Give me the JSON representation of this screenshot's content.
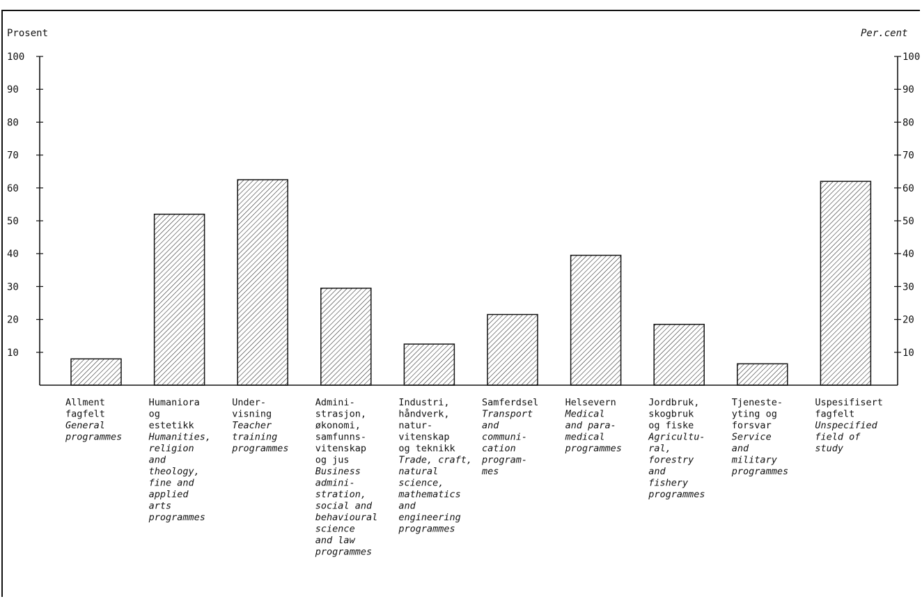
{
  "chart_data": {
    "type": "bar",
    "ylabel_left": "Prosent",
    "ylabel_right": "Per.cent",
    "ylim": [
      0,
      100
    ],
    "yticks": [
      10,
      20,
      30,
      40,
      50,
      60,
      70,
      80,
      90,
      100
    ],
    "grid": false,
    "pattern": "diagonal-hatch",
    "categories": [
      {
        "no": [
          "Allment",
          "fagfelt"
        ],
        "en": [
          "General",
          "programmes"
        ],
        "value": 8
      },
      {
        "no": [
          "Humaniora",
          "og",
          "estetikk"
        ],
        "en": [
          "Humanities,",
          "religion",
          "and",
          "theology,",
          "fine and",
          "applied",
          "arts",
          "programmes"
        ],
        "value": 52
      },
      {
        "no": [
          "Under-",
          "visning"
        ],
        "en": [
          "Teacher",
          "training",
          "programmes"
        ],
        "value": 62.5
      },
      {
        "no": [
          "Admini-",
          "strasjon,",
          "økonomi,",
          "samfunns-",
          "vitenskap",
          "og jus"
        ],
        "en": [
          "Business",
          "admini-",
          "stration,",
          "social and",
          "behavioural",
          "science",
          "and law",
          "programmes"
        ],
        "value": 29.5
      },
      {
        "no": [
          "Industri,",
          "håndverk,",
          "natur-",
          "vitenskap",
          "og teknikk"
        ],
        "en": [
          "Trade, craft,",
          "natural",
          "science,",
          "mathematics",
          "and",
          "engineering",
          "programmes"
        ],
        "value": 12.5
      },
      {
        "no": [
          "Samferdsel"
        ],
        "en": [
          "Transport",
          "and",
          "communi-",
          "cation",
          "program-",
          "mes"
        ],
        "value": 21.5
      },
      {
        "no": [
          "Helsevern"
        ],
        "en": [
          "Medical",
          "and para-",
          "medical",
          "programmes"
        ],
        "value": 39.5
      },
      {
        "no": [
          "Jordbruk,",
          "skogbruk",
          "og fiske"
        ],
        "en": [
          "Agricultu-",
          "ral,",
          "forestry",
          "and",
          "fishery",
          "programmes"
        ],
        "value": 18.5
      },
      {
        "no": [
          "Tjeneste-",
          "yting og",
          "forsvar"
        ],
        "en": [
          "Service",
          "and",
          "military",
          "programmes"
        ],
        "value": 6.5
      },
      {
        "no": [
          "Uspesifisert",
          "fagfelt"
        ],
        "en": [
          "Unspecified",
          "field of",
          "study"
        ],
        "value": 62
      }
    ]
  }
}
